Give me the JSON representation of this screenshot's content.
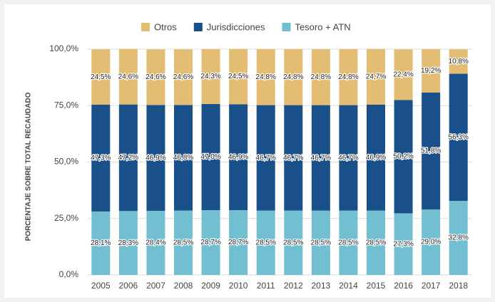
{
  "chart_data": {
    "type": "stacked_bar",
    "categories": [
      "2005",
      "2006",
      "2007",
      "2008",
      "2009",
      "2010",
      "2011",
      "2012",
      "2013",
      "2014",
      "2015",
      "2016",
      "2017",
      "2018"
    ],
    "y_label": "PORCENTAJE SOBRE TOTAL RECAUDADO",
    "ylim": [
      0,
      100
    ],
    "yticks": [
      {
        "value": 0,
        "label": "0,0%"
      },
      {
        "value": 25,
        "label": "25,0%"
      },
      {
        "value": 50,
        "label": "50,0%"
      },
      {
        "value": 75,
        "label": "75,0%"
      },
      {
        "value": 100,
        "label": "100,0%"
      }
    ],
    "grid": true,
    "legend": "top",
    "series": [
      {
        "name": "Otros",
        "color": "#e3bd73",
        "values": [
          24.5,
          24.6,
          24.6,
          24.6,
          24.3,
          24.5,
          24.8,
          24.8,
          24.8,
          24.8,
          24.7,
          22.4,
          19.2,
          10.8
        ],
        "value_labels": [
          "24,5%",
          "24,6%",
          "24,6%",
          "24,6%",
          "24,3%",
          "24,5%",
          "24,8%",
          "24,8%",
          "24,8%",
          "24,8%",
          "24,7%",
          "22,4%",
          "19,2%",
          "10,8%"
        ]
      },
      {
        "name": "Jurisdicciones",
        "color": "#1a5089",
        "values": [
          47.3,
          47.2,
          46.9,
          46.8,
          47.0,
          46.9,
          46.7,
          46.7,
          46.7,
          46.7,
          46.9,
          50.2,
          51.8,
          56.3
        ],
        "value_labels": [
          "47,3%",
          "47,2%",
          "46,9%",
          "46,8%",
          "47,0%",
          "46,9%",
          "46,7%",
          "46,7%",
          "46,7%",
          "46,7%",
          "46,9%",
          "50,2%",
          "51,8%",
          "56,3%"
        ]
      },
      {
        "name": "Tesoro + ATN",
        "color": "#72bfd1",
        "values": [
          28.1,
          28.3,
          28.4,
          28.5,
          28.7,
          28.7,
          28.5,
          28.5,
          28.5,
          28.5,
          28.5,
          27.3,
          29.0,
          32.8
        ],
        "value_labels": [
          "28,1%",
          "28,3%",
          "28,4%",
          "28,5%",
          "28,7%",
          "28,7%",
          "28,5%",
          "28,5%",
          "28,5%",
          "28,5%",
          "28,5%",
          "27,3%",
          "29,0%",
          "32,8%"
        ]
      }
    ]
  }
}
